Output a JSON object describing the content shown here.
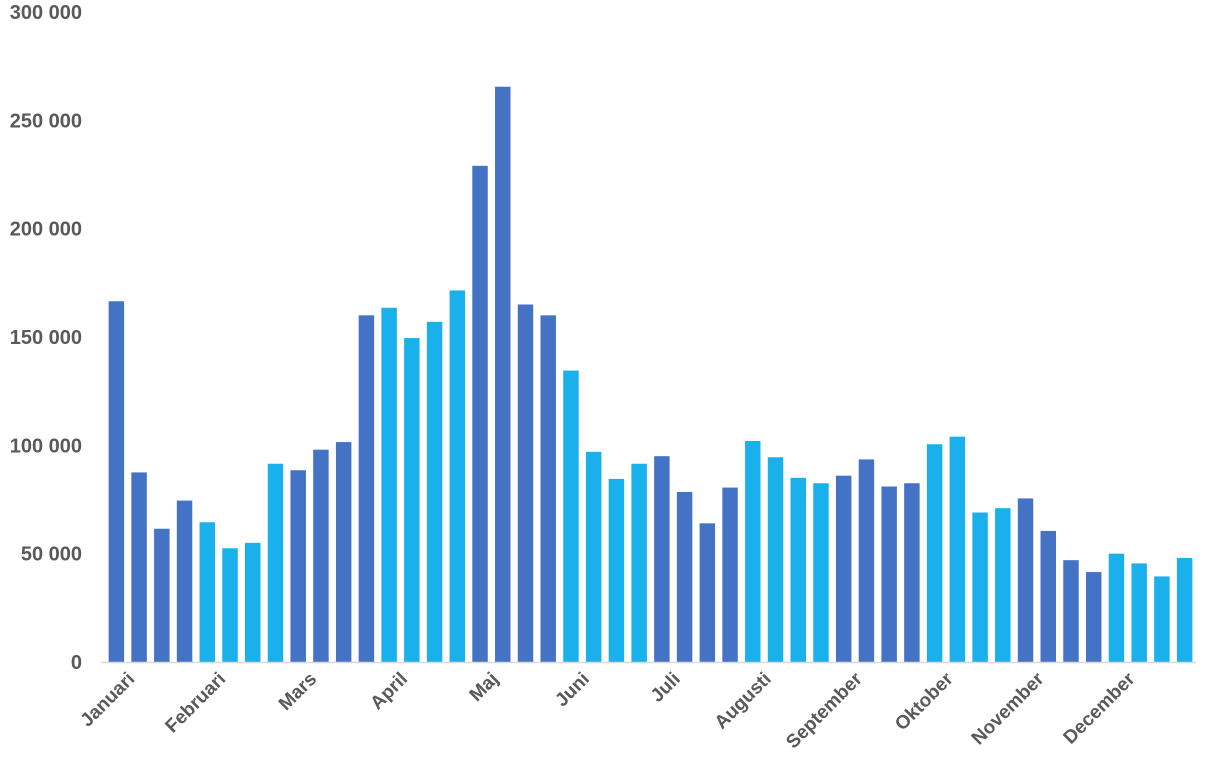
{
  "chart_data": {
    "type": "bar",
    "title": "",
    "xlabel": "",
    "ylabel": "",
    "ylim": [
      0,
      300000
    ],
    "yticks": [
      0,
      50000,
      100000,
      150000,
      200000,
      250000,
      300000
    ],
    "ytick_labels": [
      "0",
      "50 000",
      "100 000",
      "150 000",
      "200 000",
      "250 000",
      "300 000"
    ],
    "x_tick_labels": [
      {
        "label": "Januari",
        "bar_index": 0.5
      },
      {
        "label": "Februari",
        "bar_index": 4.5
      },
      {
        "label": "Mars",
        "bar_index": 8.5
      },
      {
        "label": "April",
        "bar_index": 12.5
      },
      {
        "label": "Maj",
        "bar_index": 16.5
      },
      {
        "label": "Juni",
        "bar_index": 20.5
      },
      {
        "label": "Juli",
        "bar_index": 24.5
      },
      {
        "label": "Augusti",
        "bar_index": 28.5
      },
      {
        "label": "September",
        "bar_index": 32.5
      },
      {
        "label": "Oktober",
        "bar_index": 36.5
      },
      {
        "label": "November",
        "bar_index": 40.5
      },
      {
        "label": "December",
        "bar_index": 44.5
      }
    ],
    "colors": {
      "dark": "#4472c4",
      "light": "#1ab0ec"
    },
    "values": [
      166500,
      87500,
      61500,
      74500,
      64500,
      52500,
      55000,
      91500,
      88500,
      98000,
      101500,
      160000,
      163500,
      149500,
      157000,
      171500,
      229000,
      265500,
      165000,
      160000,
      134500,
      97000,
      84500,
      91500,
      95000,
      78500,
      64000,
      80500,
      102000,
      94500,
      85000,
      82500,
      86000,
      93500,
      81000,
      82500,
      100500,
      104000,
      69000,
      71000,
      75500,
      60500,
      47000,
      41500,
      50000,
      45500,
      39500,
      48000
    ],
    "bar_colors": [
      "dark",
      "dark",
      "dark",
      "dark",
      "light",
      "light",
      "light",
      "light",
      "dark",
      "dark",
      "dark",
      "dark",
      "light",
      "light",
      "light",
      "light",
      "dark",
      "dark",
      "dark",
      "dark",
      "light",
      "light",
      "light",
      "light",
      "dark",
      "dark",
      "dark",
      "dark",
      "light",
      "light",
      "light",
      "light",
      "dark",
      "dark",
      "dark",
      "dark",
      "light",
      "light",
      "light",
      "light",
      "dark",
      "dark",
      "dark",
      "dark",
      "light",
      "light",
      "light",
      "light"
    ]
  }
}
